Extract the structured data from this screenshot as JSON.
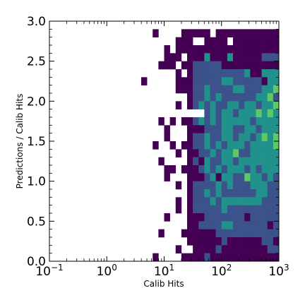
{
  "chart_data": {
    "type": "heatmap",
    "title": "",
    "xlabel": "Calib Hits",
    "ylabel": "Predictions / Calib Hits",
    "x_scale": "log",
    "xlim": [
      0.1,
      1000
    ],
    "ylim": [
      0,
      3
    ],
    "x_ticks": [
      {
        "value": 0.1,
        "base": "10",
        "exp": "−1"
      },
      {
        "value": 1,
        "base": "10",
        "exp": "0"
      },
      {
        "value": 10,
        "base": "10",
        "exp": "1"
      },
      {
        "value": 100,
        "base": "10",
        "exp": "2"
      },
      {
        "value": 1000,
        "base": "10",
        "exp": "3"
      }
    ],
    "y_ticks": [
      "0.0",
      "0.5",
      "1.0",
      "1.5",
      "2.0",
      "2.5",
      "3.0"
    ],
    "colormap": [
      "#440154",
      "#3b528b",
      "#21918c",
      "#5ec962",
      "#fde725"
    ],
    "grid": false,
    "bins": {
      "x_log_min": 0.6,
      "x_log_step": 0.1,
      "y_min": 0,
      "y_step": 0.1,
      "y_bins": 30,
      "intensity_rows": [
        "...............................",
        "..0....00000.0000000000000000..",
        "......000..0000.000000000000.0.",
        "....0.00000000000000000000000..",
        "....000.00020002000001110100111",
        "...000.00111110000000000000001.",
        "......0.01111111112002220000222",
        "0.....00011111221111102232222222",
        "......00011211112211122322222224",
        "........0112121111112231233233.",
        "......0.0121211221221223223223232",
        "...........1212212223232232223.",
        "...0.0.0012121222221222222422223",
        "....0...0001112211221222222233432",
        "....0...01121122122123232224430",
        "..0..0.0011212122212222323333422",
        "......0.0011212231122222112322",
        "...0....01021122122222222222222.",
        "....00.0001212122212122222222222",
        "....0...0001202211322121112112",
        "......0.011112121112221121111110",
        "........0112121111112211111110.",
        "......0.0111212222222111111111",
        "......0.01111121111111111110.",
        "....0...0001111111011111111..",
        "........0011112211111101111110.",
        "...0...0000001111111111111110.",
        "........000000100000011000010.",
        "......0..0000100000000110000..",
        "..0....0000100000000000000000."
      ]
    }
  }
}
